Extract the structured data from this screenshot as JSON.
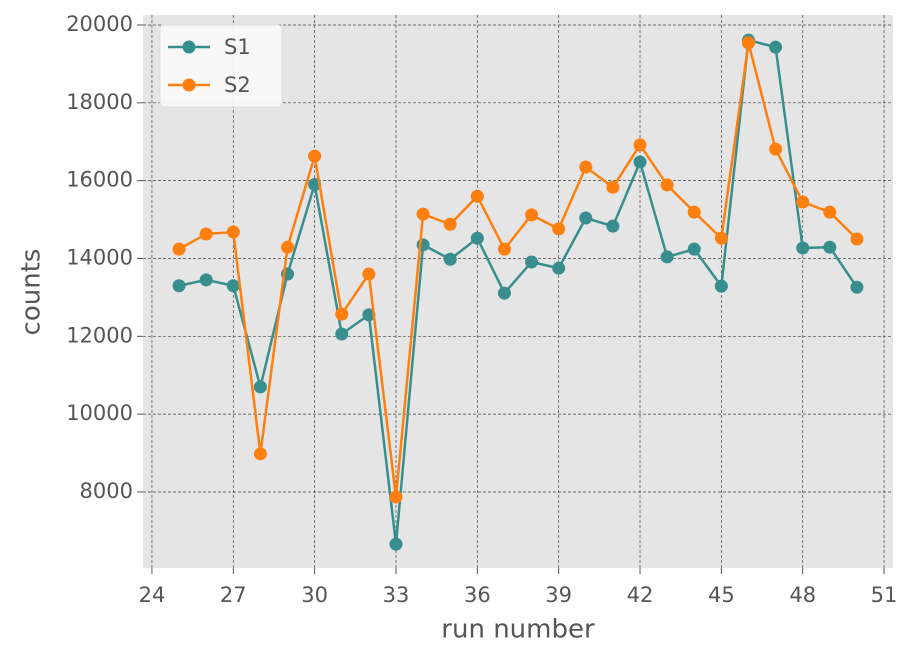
{
  "chart_data": {
    "type": "line",
    "xlabel": "run number",
    "ylabel": "counts",
    "x": [
      25,
      26,
      27,
      28,
      29,
      30,
      31,
      32,
      33,
      34,
      35,
      36,
      37,
      38,
      39,
      40,
      41,
      42,
      43,
      44,
      45,
      46,
      47,
      48,
      49,
      50
    ],
    "series": [
      {
        "name": "S1",
        "color": "#388e8e",
        "values": [
          13300,
          13450,
          13300,
          10700,
          13600,
          15900,
          12060,
          12550,
          6660,
          14350,
          13980,
          14520,
          13110,
          13910,
          13750,
          15040,
          14830,
          16480,
          14040,
          14240,
          13290,
          19610,
          19430,
          14270,
          14290,
          13260
        ]
      },
      {
        "name": "S2",
        "color": "#ff7f0e",
        "values": [
          14240,
          14630,
          14680,
          8980,
          14290,
          16630,
          12570,
          13600,
          7870,
          15140,
          14880,
          15600,
          14240,
          15120,
          14760,
          16350,
          15830,
          16920,
          15890,
          15190,
          14520,
          19540,
          16810,
          15450,
          15190,
          14500
        ]
      }
    ],
    "xlim": [
      23.67,
      51.33
    ],
    "xticks": [
      24,
      27,
      30,
      33,
      36,
      39,
      42,
      45,
      48,
      51
    ],
    "ylim": [
      6046,
      20257
    ],
    "yticks": [
      8000,
      10000,
      12000,
      14000,
      16000,
      18000,
      20000
    ],
    "grid": true,
    "legend": "upper left"
  }
}
